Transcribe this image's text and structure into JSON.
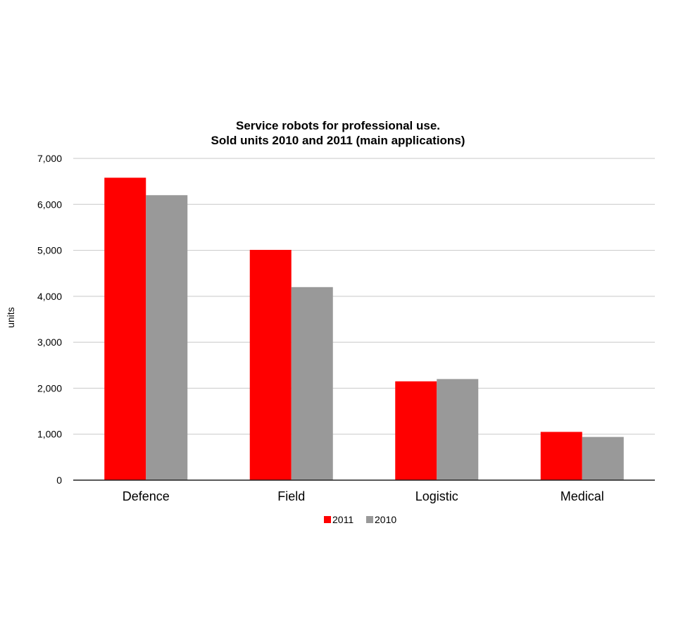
{
  "chart_data": {
    "type": "bar",
    "title": [
      "Service robots for professional use.",
      "Sold units 2010 and 2011 (main applications)"
    ],
    "xlabel": "",
    "ylabel": "units",
    "categories": [
      "Defence",
      "Field",
      "Logistic",
      "Medical"
    ],
    "series": [
      {
        "name": "2011",
        "color": "#ff0000",
        "values": [
          6580,
          5010,
          2150,
          1050
        ]
      },
      {
        "name": "2010",
        "color": "#999999",
        "values": [
          6200,
          4200,
          2200,
          940
        ]
      }
    ],
    "ylim": [
      0,
      7000
    ],
    "yticks": [
      0,
      1000,
      2000,
      3000,
      4000,
      5000,
      6000,
      7000
    ],
    "ytick_labels": [
      "0",
      "1,000",
      "2,000",
      "3,000",
      "4,000",
      "5,000",
      "6,000",
      "7,000"
    ],
    "grid": true,
    "legend": "bottom-center"
  }
}
